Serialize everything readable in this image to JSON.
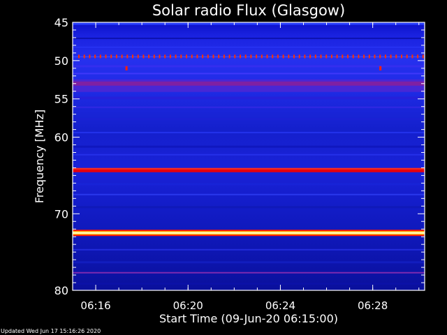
{
  "chart_data": {
    "type": "heatmap",
    "title": "Solar radio Flux (Glasgow)",
    "xlabel": "Start Time (09-Jun-20 06:15:00)",
    "ylabel": "Frequency [MHz]",
    "x_unit": "time (HH:MM)",
    "xlim": [
      "06:15:00",
      "06:30:15"
    ],
    "ylim": [
      80,
      45
    ],
    "x_ticks": [
      "06:16",
      "06:20",
      "06:24",
      "06:28"
    ],
    "y_ticks": [
      45,
      50,
      55,
      60,
      70,
      80
    ],
    "background_level": "low (blue)",
    "colormap": [
      "#00007a",
      "#1a1ad8",
      "#4a34ff",
      "#7a2ab8",
      "#c00020",
      "#ff2000",
      "#ffd020",
      "#ffffc0"
    ],
    "emission_bands": [
      {
        "freq_mhz": 45.2,
        "intensity": "medium (blue)"
      },
      {
        "freq_mhz": 49.5,
        "intensity": "intermittent spikes (red)"
      },
      {
        "freq_mhz": 53.0,
        "intensity": "medium-high (magenta)"
      },
      {
        "freq_mhz": 64.3,
        "intensity": "high (red)"
      },
      {
        "freq_mhz": 72.5,
        "intensity": "very high (yellow-white)"
      },
      {
        "freq_mhz": 77.7,
        "intensity": "low-medium (purple)"
      }
    ],
    "isolated_spikes": [
      {
        "time": "06:17:20",
        "freq_mhz": 51.0
      },
      {
        "time": "06:28:20",
        "freq_mhz": 51.0
      }
    ]
  },
  "footer": {
    "updated": "Updated Wed Jun 17 15:16:26 2020"
  }
}
